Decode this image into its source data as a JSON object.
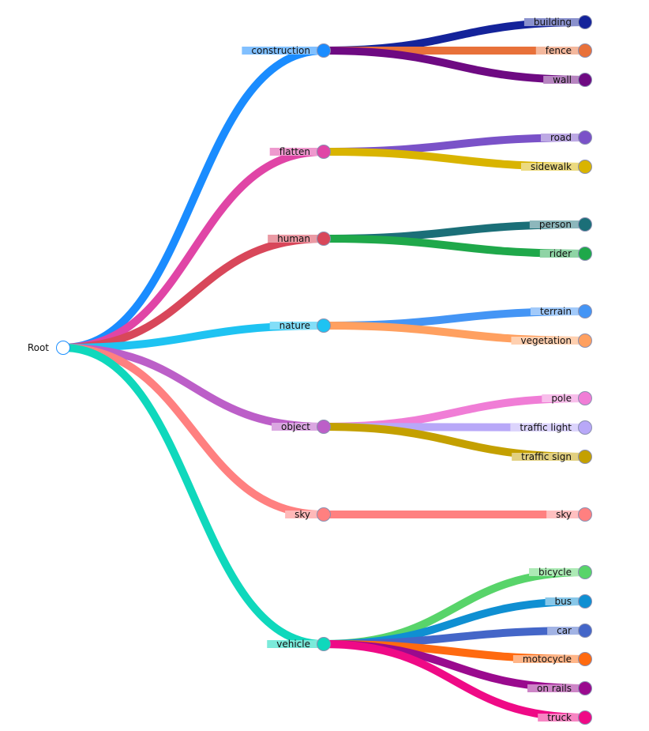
{
  "root": {
    "label": "Root"
  },
  "groups": [
    {
      "label": "construction",
      "color": "#1a8cff",
      "children": [
        {
          "label": "building",
          "color": "#14239a"
        },
        {
          "label": "fence",
          "color": "#e8713a"
        },
        {
          "label": "wall",
          "color": "#6e0a82"
        }
      ]
    },
    {
      "label": "flatten",
      "color": "#e045a6",
      "children": [
        {
          "label": "road",
          "color": "#7a52c8"
        },
        {
          "label": "sidewalk",
          "color": "#d9b400"
        }
      ]
    },
    {
      "label": "human",
      "color": "#d8475a",
      "children": [
        {
          "label": "person",
          "color": "#1b6f78"
        },
        {
          "label": "rider",
          "color": "#1fa84a"
        }
      ]
    },
    {
      "label": "nature",
      "color": "#1ec3f2",
      "children": [
        {
          "label": "terrain",
          "color": "#4495f5"
        },
        {
          "label": "vegetation",
          "color": "#ffa060"
        }
      ]
    },
    {
      "label": "object",
      "color": "#bc5fc8",
      "children": [
        {
          "label": "pole",
          "color": "#f07dd6"
        },
        {
          "label": "traffic light",
          "color": "#b8a8f8"
        },
        {
          "label": "traffic sign",
          "color": "#c4a000"
        }
      ]
    },
    {
      "label": "sky",
      "color": "#ff8080",
      "children": [
        {
          "label": "sky",
          "color": "#ff8080"
        }
      ]
    },
    {
      "label": "vehicle",
      "color": "#0fd8bc",
      "children": [
        {
          "label": "bicycle",
          "color": "#58d46a"
        },
        {
          "label": "bus",
          "color": "#0f8fd2"
        },
        {
          "label": "car",
          "color": "#4466c8"
        },
        {
          "label": "motocycle",
          "color": "#ff6a10"
        },
        {
          "label": "on rails",
          "color": "#9a0a8e"
        },
        {
          "label": "truck",
          "color": "#ef0a86"
        }
      ]
    }
  ]
}
